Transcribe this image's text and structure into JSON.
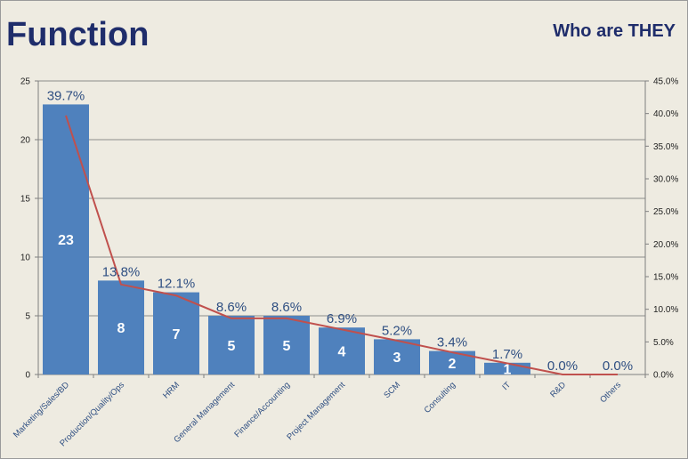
{
  "header": {
    "title": "Function",
    "subtitle": "Who are THEY"
  },
  "chart_data": {
    "type": "bar",
    "categories": [
      "Marketing/Sales/BD",
      "Production/Quality/Ops",
      "HRM",
      "General Management",
      "Finance/Accounting",
      "Project Management",
      "SCM",
      "Consulting",
      "IT",
      "R&D",
      "Others"
    ],
    "series": [
      {
        "type": "bar",
        "axis": "left",
        "values": [
          23,
          8,
          7,
          5,
          5,
          4,
          3,
          2,
          1,
          0,
          0
        ],
        "value_labels": [
          "23",
          "8",
          "7",
          "5",
          "5",
          "4",
          "3",
          "2",
          "1",
          "",
          ""
        ]
      },
      {
        "type": "line",
        "axis": "right",
        "values": [
          39.7,
          13.8,
          12.1,
          8.6,
          8.6,
          6.9,
          5.2,
          3.4,
          1.7,
          0.0,
          0.0
        ],
        "value_labels": [
          "39.7%",
          "13.8%",
          "12.1%",
          "8.6%",
          "8.6%",
          "6.9%",
          "5.2%",
          "3.4%",
          "1.7%",
          "0.0%",
          "0.0%"
        ]
      }
    ],
    "y_left": {
      "ylim": [
        0,
        25
      ],
      "ticks": [
        "0",
        "5",
        "10",
        "15",
        "20",
        "25"
      ]
    },
    "y_right": {
      "ylim": [
        0,
        45
      ],
      "ticks": [
        "0.0%",
        "5.0%",
        "10.0%",
        "15.0%",
        "20.0%",
        "25.0%",
        "30.0%",
        "35.0%",
        "40.0%",
        "45.0%"
      ]
    },
    "grid": true,
    "colors": {
      "bar": "#4f81bd",
      "line": "#c0504d",
      "grid": "#8c8c8c",
      "axis": "#7f7f7f"
    }
  }
}
